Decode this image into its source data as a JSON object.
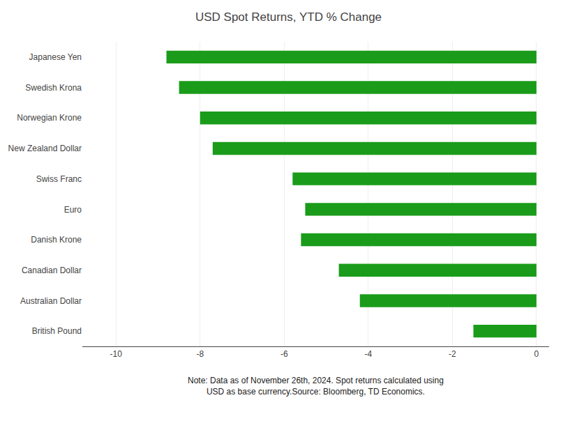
{
  "chart_data": {
    "type": "bar",
    "orientation": "horizontal",
    "title": "USD Spot Returns, YTD % Change",
    "categories": [
      "British Pound",
      "Australian Dollar",
      "Canadian Dollar",
      "Danish Krone",
      "Euro",
      "Swiss Franc",
      "New Zealand Dollar",
      "Norwegian Krone",
      "Swedish Krona",
      "Japanese Yen"
    ],
    "values": [
      -1.5,
      -4.2,
      -4.7,
      -5.6,
      -5.5,
      -5.8,
      -7.7,
      -8.0,
      -8.5,
      -8.8
    ],
    "color": "#1a9c1a",
    "xlim": [
      -10.8,
      0.3
    ],
    "xticks": [
      -10,
      -8,
      -6,
      -4,
      -2,
      0
    ],
    "grid": true,
    "annotations": [
      "Note: Data as of November 26th, 2024. Spot returns calculated using",
      "USD as base currency.Source: Bloomberg, TD Economics."
    ]
  }
}
